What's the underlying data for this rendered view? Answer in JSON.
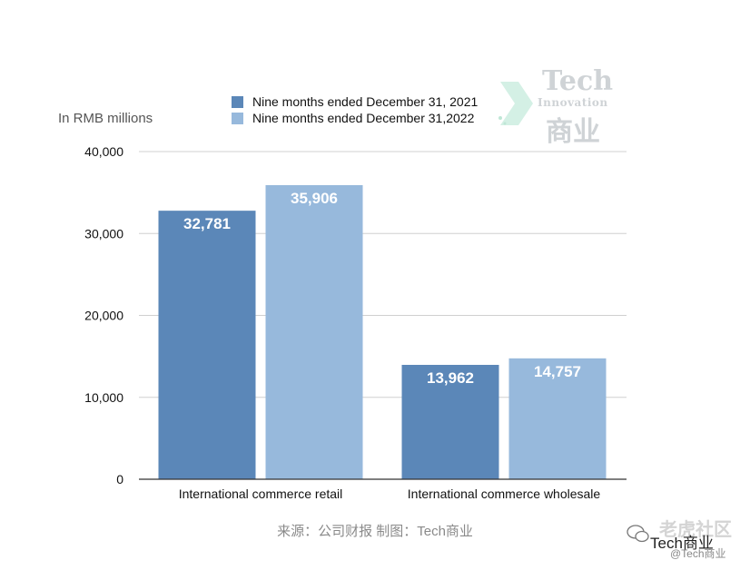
{
  "chart_data": {
    "type": "bar",
    "categories": [
      "International commerce retail",
      "International commerce wholesale"
    ],
    "series": [
      {
        "name": "Nine months ended December 31, 2021",
        "values": [
          32781,
          13962
        ],
        "value_labels": [
          "32,781",
          "13,962"
        ],
        "color": "#5b87b8"
      },
      {
        "name": "Nine months ended December 31,2022",
        "values": [
          35906,
          14757
        ],
        "value_labels": [
          "35,906",
          "14,757"
        ],
        "color": "#97b9dc"
      }
    ],
    "ylabel": "In RMB millions",
    "ylim": [
      0,
      40000
    ],
    "yticks": [
      0,
      10000,
      20000,
      30000,
      40000
    ],
    "ytick_labels": [
      "0",
      "10,000",
      "20,000",
      "30,000",
      "40,000"
    ],
    "grid": true,
    "legend_position": "top"
  },
  "source_note": "来源：公司财报 制图：Tech商业",
  "watermarks": {
    "logo_top": "Tech",
    "logo_mid": "Innovation",
    "logo_bottom": "商业",
    "community": "老虎社区",
    "community_sub": "Tech商业",
    "community_handle": "@Tech商业"
  },
  "colors": {
    "grid": "#d0d0d0",
    "axis": "#333333",
    "watermark": "#cfd3d6"
  }
}
